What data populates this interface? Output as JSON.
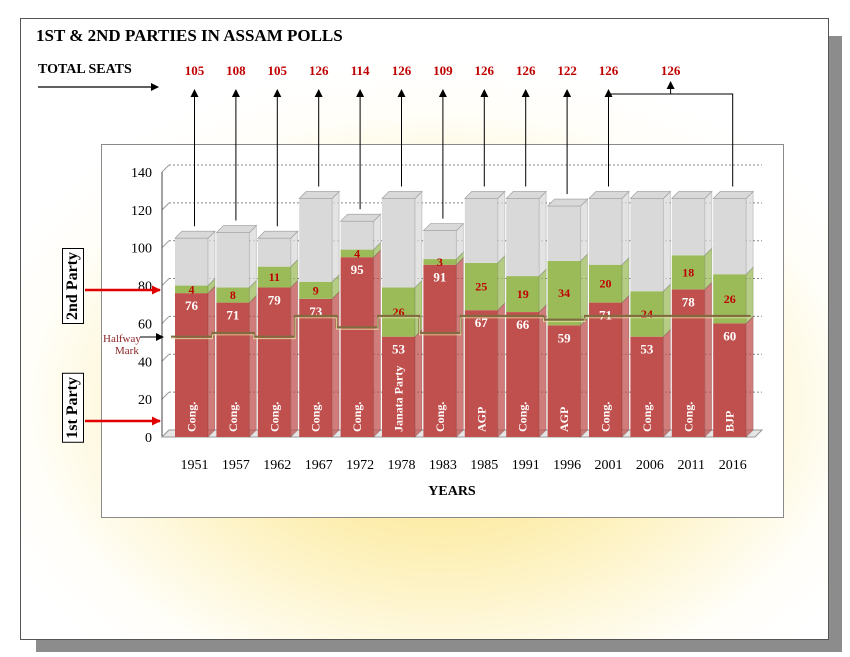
{
  "chart_data": {
    "type": "bar",
    "title": "1ST & 2ND PARTIES IN ASSAM POLLS",
    "total_seats_label": "TOTAL SEATS",
    "xlabel": "YEARS",
    "ylim": [
      0,
      140
    ],
    "yticks": [
      0,
      20,
      40,
      60,
      80,
      100,
      120,
      140
    ],
    "categories": [
      "1951",
      "1957",
      "1962",
      "1967",
      "1972",
      "1978",
      "1983",
      "1985",
      "1991",
      "1996",
      "2001",
      "2006",
      "2011",
      "2016"
    ],
    "total_seats": [
      105,
      108,
      105,
      126,
      114,
      126,
      109,
      126,
      126,
      122,
      126,
      126,
      126,
      126
    ],
    "total_seats_display": [
      "105",
      "108",
      "105",
      "126",
      "114",
      "126",
      "109",
      "126",
      "126",
      "122",
      "126",
      "",
      "",
      ""
    ],
    "grouped_total_label": "126",
    "series": [
      {
        "name": "1st Party",
        "values": [
          76,
          71,
          79,
          73,
          95,
          53,
          91,
          67,
          66,
          59,
          71,
          53,
          78,
          60
        ],
        "parties": [
          "Cong.",
          "Cong.",
          "Cong.",
          "Cong.",
          "Cong.",
          "Janata Party",
          "Cong.",
          "AGP",
          "Cong.",
          "AGP",
          "Cong.",
          "Cong.",
          "Cong.",
          "BJP"
        ]
      },
      {
        "name": "2nd Party",
        "values": [
          4,
          8,
          11,
          9,
          4,
          26,
          3,
          25,
          19,
          34,
          20,
          24,
          18,
          26
        ]
      }
    ],
    "halfway_mark_label": [
      "Halfway",
      "Mark"
    ],
    "halfway_mark": [
      53,
      55,
      53,
      64,
      58,
      64,
      55,
      64,
      64,
      62,
      64,
      64,
      64,
      64
    ],
    "colors": {
      "first": "#c0504d",
      "second": "#9bbb59",
      "rest": "#d9d9d9",
      "total_text": "#c00000",
      "arrow": "#e00000"
    }
  }
}
